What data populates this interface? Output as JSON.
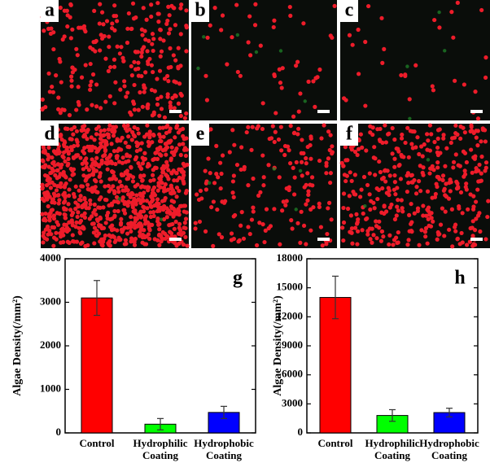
{
  "panels": [
    {
      "label": "a"
    },
    {
      "label": "b"
    },
    {
      "label": "c"
    },
    {
      "label": "d"
    },
    {
      "label": "e"
    },
    {
      "label": "f"
    }
  ],
  "chart_data": [
    {
      "type": "bar",
      "label": "g",
      "y_label": "Algae Density(/mm²)",
      "categories": [
        "Control",
        "Hydrophilic Coating",
        "Hydrophobic Coating"
      ],
      "values": [
        3100,
        200,
        470
      ],
      "errors": [
        400,
        130,
        140
      ],
      "colors": [
        "#ff0000",
        "#00ff00",
        "#0000ff"
      ],
      "ylim": [
        0,
        4000
      ],
      "yticks": [
        0,
        1000,
        2000,
        3000,
        4000
      ]
    },
    {
      "type": "bar",
      "label": "h",
      "y_label": "Algae Density(/mm²)",
      "categories": [
        "Control",
        "Hydrophilic Coating",
        "Hydrophobic Coating"
      ],
      "values": [
        14000,
        1800,
        2100
      ],
      "errors": [
        2200,
        600,
        450
      ],
      "colors": [
        "#ff0000",
        "#00ff00",
        "#0000ff"
      ],
      "ylim": [
        0,
        18000
      ],
      "yticks": [
        0,
        3000,
        6000,
        9000,
        12000,
        15000,
        18000
      ]
    }
  ]
}
